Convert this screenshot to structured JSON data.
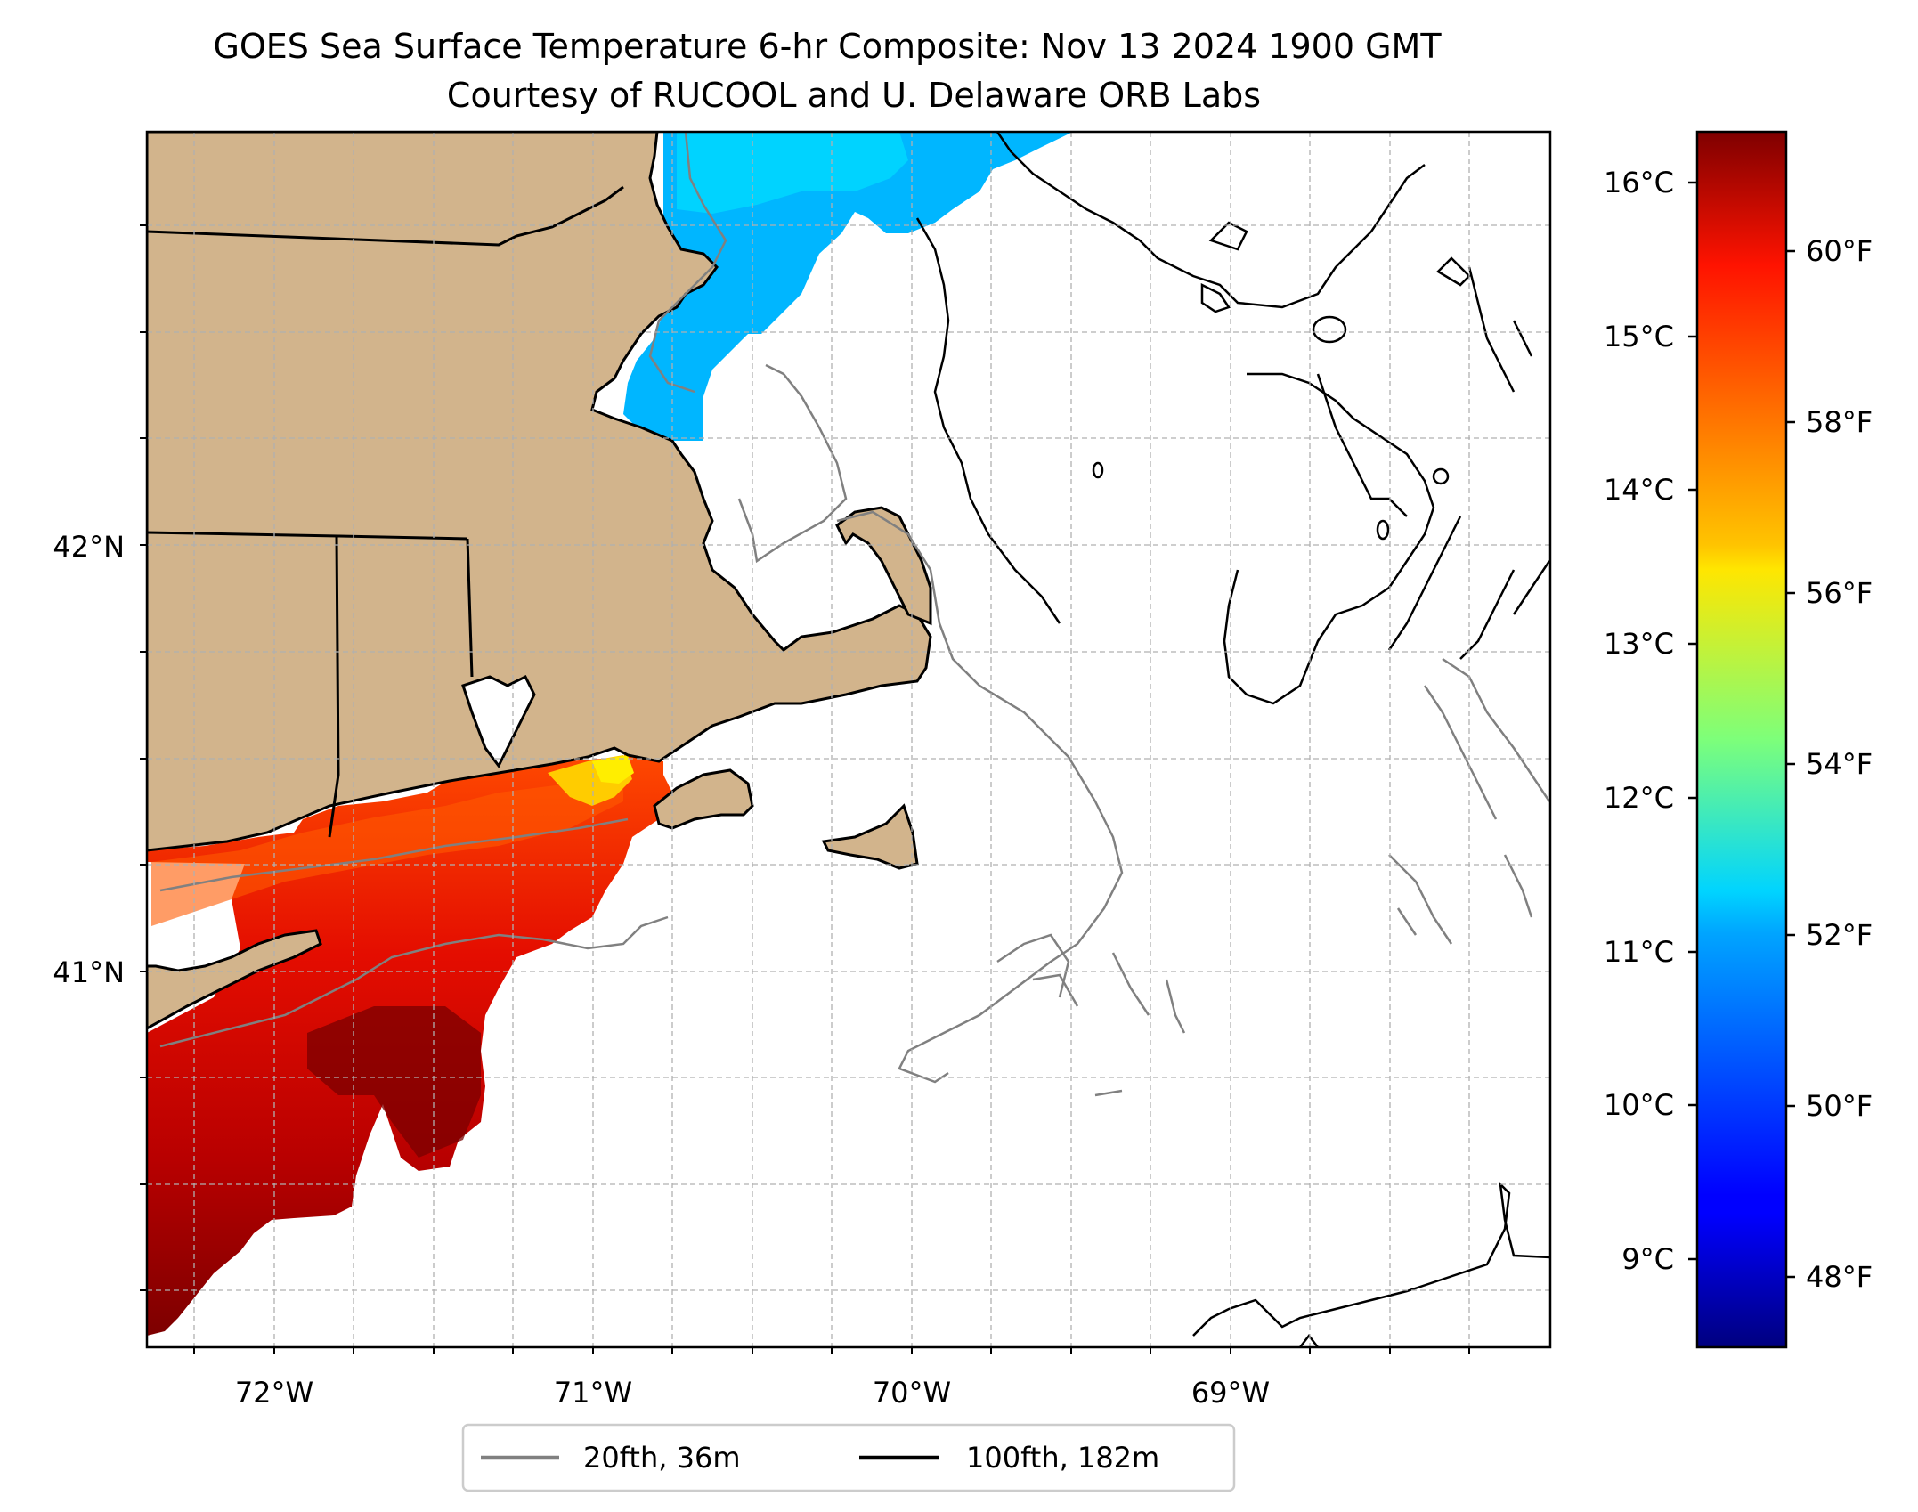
{
  "title_line1": "GOES Sea Surface Temperature 6-hr Composite: Nov 13 2024 1900 GMT",
  "title_line2": "Courtesy of RUCOOL and U. Delaware ORB Labs",
  "map": {
    "extent_lon": [
      -72.4,
      -68.0
    ],
    "extent_lat": [
      40.15,
      43.0
    ],
    "lon_ticks": [
      {
        "value": -72,
        "label": "72°W"
      },
      {
        "value": -71,
        "label": "71°W"
      },
      {
        "value": -70,
        "label": "70°W"
      },
      {
        "value": -69,
        "label": "69°W"
      }
    ],
    "lat_ticks": [
      {
        "value": 42,
        "label": "42°N"
      },
      {
        "value": 41,
        "label": "41°N"
      }
    ],
    "grid": true,
    "land_color": "#d2b48c"
  },
  "colorbar": {
    "colormap": "jet",
    "range_c": [
      8.5,
      16.3
    ],
    "celsius_ticks": [
      {
        "value": 16,
        "label": "16°C"
      },
      {
        "value": 15,
        "label": "15°C"
      },
      {
        "value": 14,
        "label": "14°C"
      },
      {
        "value": 13,
        "label": "13°C"
      },
      {
        "value": 12,
        "label": "12°C"
      },
      {
        "value": 11,
        "label": "11°C"
      },
      {
        "value": 10,
        "label": "10°C"
      },
      {
        "value": 9,
        "label": "9°C"
      }
    ],
    "fahrenheit_ticks": [
      {
        "value": 60,
        "label": "60°F"
      },
      {
        "value": 58,
        "label": "58°F"
      },
      {
        "value": 56,
        "label": "56°F"
      },
      {
        "value": 54,
        "label": "54°F"
      },
      {
        "value": 52,
        "label": "52°F"
      },
      {
        "value": 50,
        "label": "50°F"
      },
      {
        "value": 48,
        "label": "48°F"
      }
    ]
  },
  "legend": {
    "items": [
      {
        "label": "20fth, 36m",
        "color": "#808080"
      },
      {
        "label": "100fth, 182m",
        "color": "#000000"
      }
    ]
  }
}
